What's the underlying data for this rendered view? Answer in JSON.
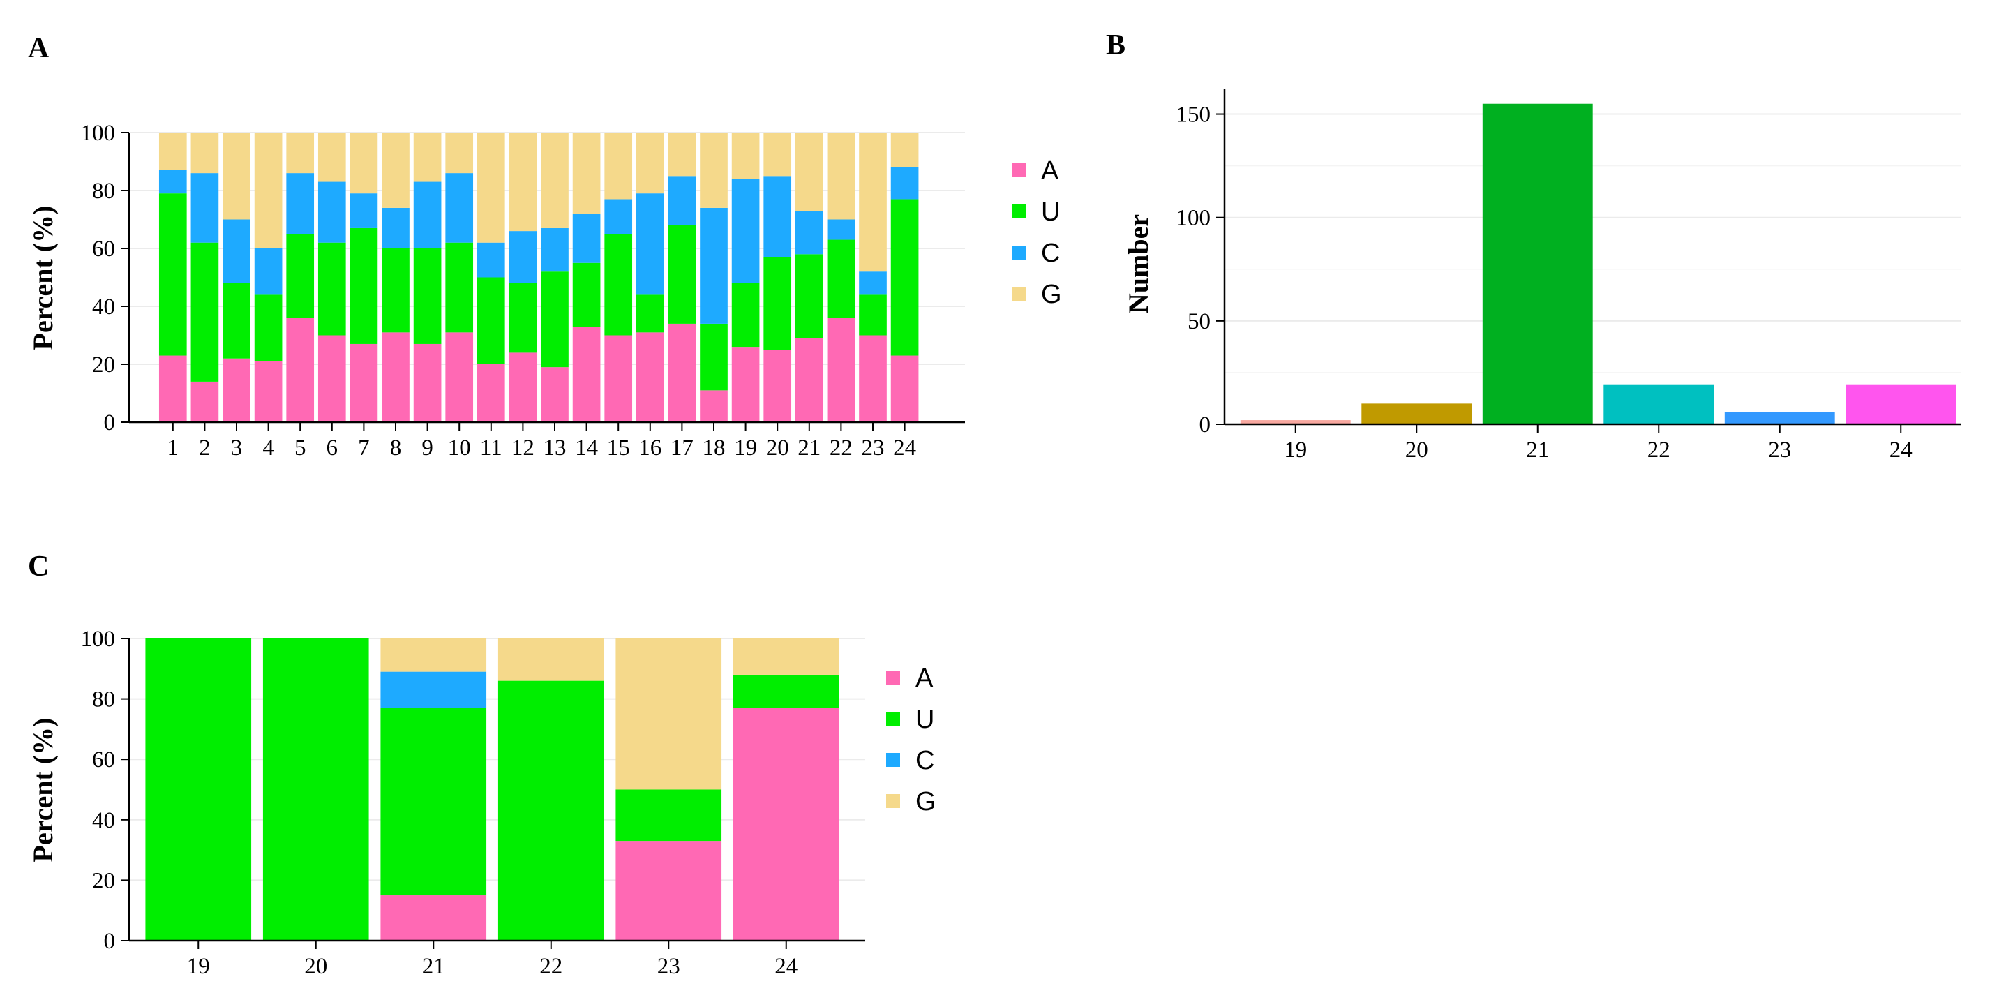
{
  "colors": {
    "A": "#ff69b4",
    "U": "#00ee00",
    "C": "#1eaaff",
    "G": "#f5d98b"
  },
  "chart_data": [
    {
      "panel": "A",
      "type": "bar",
      "stacked": true,
      "title": "",
      "xlabel": "",
      "ylabel": "Percent (%)",
      "ylim": [
        0,
        100
      ],
      "yticks": [
        0,
        20,
        40,
        60,
        80,
        100
      ],
      "grid": true,
      "legend_position": "right",
      "categories": [
        "1",
        "2",
        "3",
        "4",
        "5",
        "6",
        "7",
        "8",
        "9",
        "10",
        "11",
        "12",
        "13",
        "14",
        "15",
        "16",
        "17",
        "18",
        "19",
        "20",
        "21",
        "22",
        "23",
        "24"
      ],
      "series": [
        {
          "name": "A",
          "values": [
            23,
            14,
            22,
            21,
            36,
            30,
            27,
            31,
            27,
            31,
            20,
            24,
            19,
            33,
            30,
            31,
            34,
            11,
            26,
            25,
            29,
            36,
            30,
            23
          ]
        },
        {
          "name": "U",
          "values": [
            56,
            48,
            26,
            23,
            29,
            32,
            40,
            29,
            33,
            31,
            30,
            24,
            33,
            22,
            35,
            13,
            34,
            23,
            22,
            32,
            29,
            27,
            14,
            54
          ]
        },
        {
          "name": "C",
          "values": [
            8,
            24,
            22,
            16,
            21,
            21,
            12,
            14,
            23,
            24,
            12,
            18,
            15,
            17,
            12,
            35,
            17,
            40,
            36,
            28,
            15,
            7,
            8,
            11
          ]
        },
        {
          "name": "G",
          "values": [
            13,
            14,
            30,
            40,
            14,
            17,
            21,
            26,
            17,
            14,
            38,
            34,
            33,
            28,
            23,
            21,
            15,
            26,
            16,
            15,
            27,
            30,
            48,
            12
          ]
        }
      ]
    },
    {
      "panel": "B",
      "type": "bar",
      "title": "",
      "xlabel": "",
      "ylabel": "Number",
      "ylim": [
        0,
        162
      ],
      "yticks": [
        0,
        50,
        100,
        150
      ],
      "grid": true,
      "categories": [
        "19",
        "20",
        "21",
        "22",
        "23",
        "24"
      ],
      "values": [
        2,
        10,
        155,
        19,
        6,
        19
      ],
      "bar_colors": [
        "#f8a8a0",
        "#c09a00",
        "#00b020",
        "#00c0c0",
        "#3399ff",
        "#ff55ee"
      ]
    },
    {
      "panel": "C",
      "type": "bar",
      "stacked": true,
      "title": "",
      "xlabel": "",
      "ylabel": "Percent (%)",
      "ylim": [
        0,
        100
      ],
      "yticks": [
        0,
        20,
        40,
        60,
        80,
        100
      ],
      "grid": true,
      "legend_position": "right",
      "categories": [
        "19",
        "20",
        "21",
        "22",
        "23",
        "24"
      ],
      "series": [
        {
          "name": "A",
          "values": [
            0,
            0,
            15,
            0,
            33,
            77
          ]
        },
        {
          "name": "U",
          "values": [
            100,
            100,
            62,
            86,
            17,
            11
          ]
        },
        {
          "name": "C",
          "values": [
            0,
            0,
            12,
            0,
            0,
            0
          ]
        },
        {
          "name": "G",
          "values": [
            0,
            0,
            11,
            14,
            50,
            12
          ]
        }
      ]
    }
  ]
}
